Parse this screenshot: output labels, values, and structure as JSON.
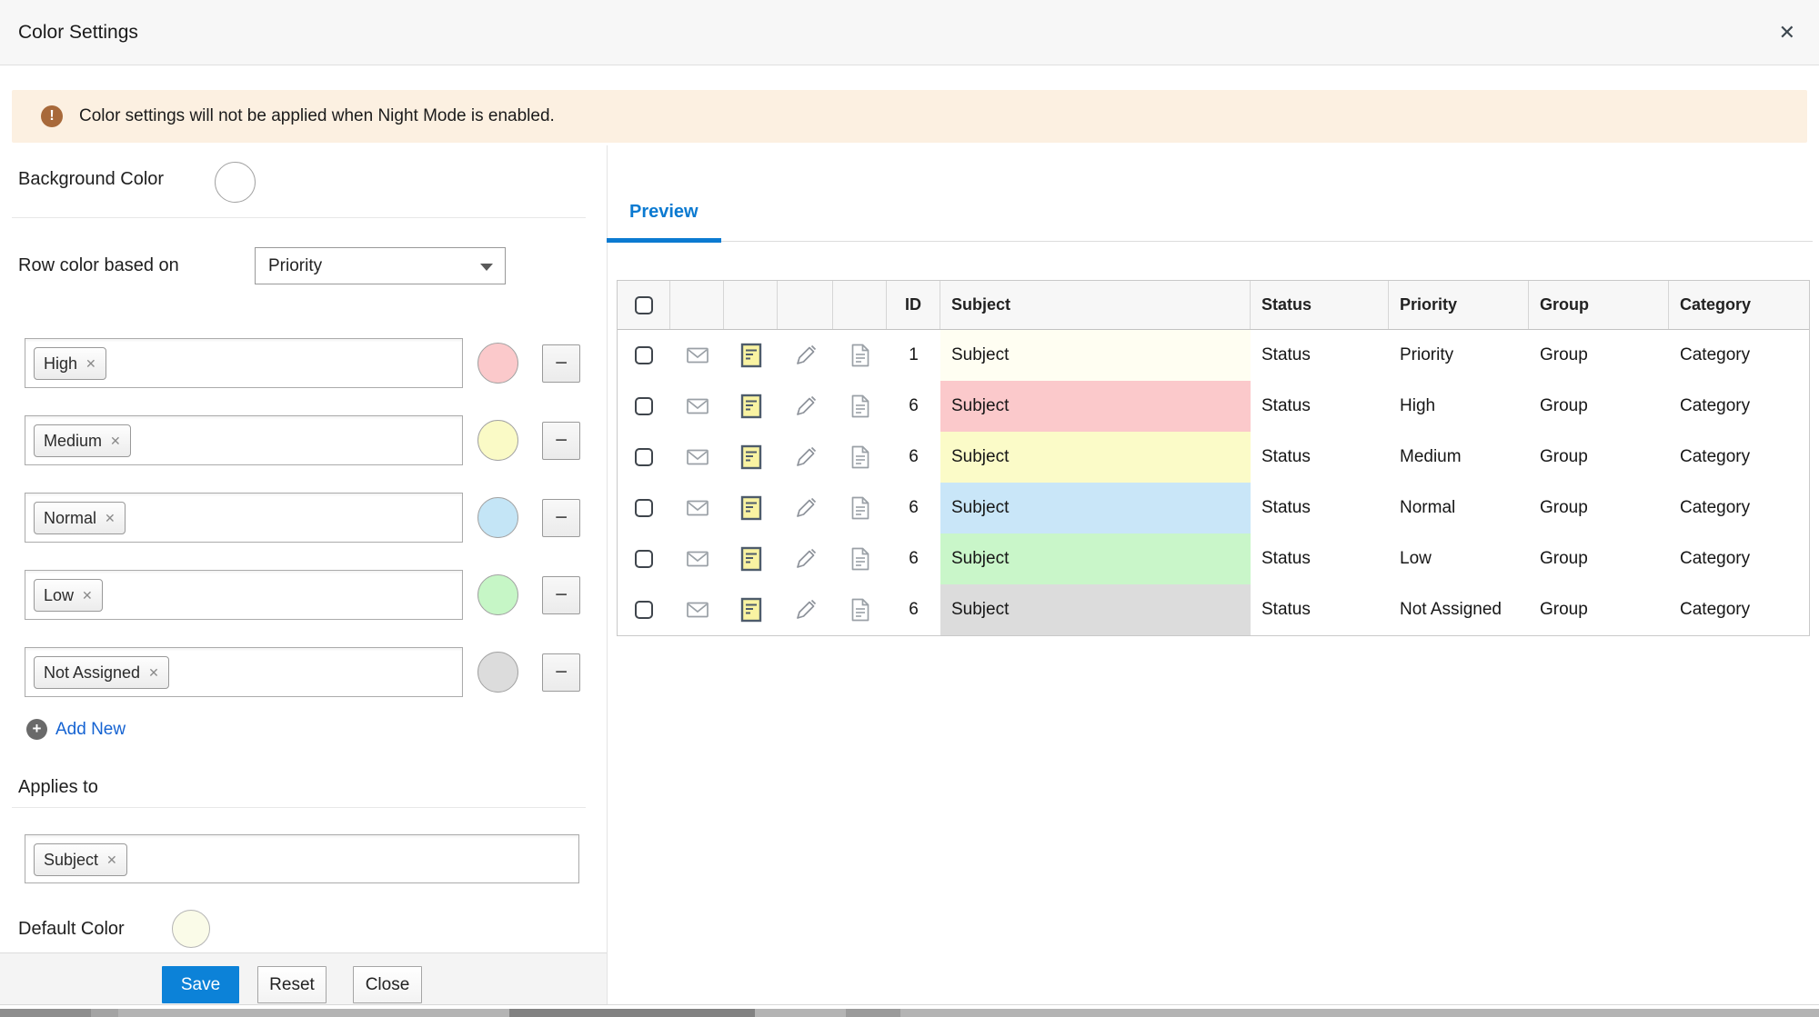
{
  "dialog": {
    "title": "Color Settings"
  },
  "icons": {
    "close": "✕",
    "warning": "!",
    "tag_remove": "✕",
    "minus": "−",
    "plus": "+"
  },
  "colors": {
    "accent_blue": "#0b7ad1",
    "save_button_blue": "#0c82d8",
    "banner_background": "#fcf0e1",
    "warning_icon": "#a8693a"
  },
  "banner": {
    "text": "Color settings will not be applied when Night Mode is enabled."
  },
  "left_panel": {
    "background_color": {
      "label": "Background Color",
      "value": "#ffffff"
    },
    "row_color_based_on": {
      "label": "Row color based on",
      "selected": "Priority"
    },
    "value_rows": [
      {
        "tag": "High",
        "color": "#fbc9cb"
      },
      {
        "tag": "Medium",
        "color": "#fafac6"
      },
      {
        "tag": "Normal",
        "color": "#c4e5f6"
      },
      {
        "tag": "Low",
        "color": "#c6f6c6"
      },
      {
        "tag": "Not Assigned",
        "color": "#dcdcdc"
      }
    ],
    "add_new": {
      "label": "Add New"
    },
    "applies_to": {
      "label": "Applies to",
      "tags": [
        "Subject"
      ]
    },
    "default_color": {
      "label": "Default Color",
      "value": "#fafbe8"
    },
    "footer": {
      "save": "Save",
      "reset": "Reset",
      "close": "Close"
    }
  },
  "preview_panel": {
    "tab_label": "Preview",
    "table": {
      "headers": {
        "id": "ID",
        "subject": "Subject",
        "status": "Status",
        "priority": "Priority",
        "group": "Group",
        "category": "Category"
      },
      "rows": [
        {
          "id": "1",
          "subject": "Subject",
          "subject_color": "#fffef2",
          "status": "Status",
          "priority": "Priority",
          "group": "Group",
          "category": "Category"
        },
        {
          "id": "6",
          "subject": "Subject",
          "subject_color": "#fbc9cb",
          "status": "Status",
          "priority": "High",
          "group": "Group",
          "category": "Category"
        },
        {
          "id": "6",
          "subject": "Subject",
          "subject_color": "#fbfbc8",
          "status": "Status",
          "priority": "Medium",
          "group": "Group",
          "category": "Category"
        },
        {
          "id": "6",
          "subject": "Subject",
          "subject_color": "#c9e6f8",
          "status": "Status",
          "priority": "Normal",
          "group": "Group",
          "category": "Category"
        },
        {
          "id": "6",
          "subject": "Subject",
          "subject_color": "#c9f6c9",
          "status": "Status",
          "priority": "Low",
          "group": "Group",
          "category": "Category"
        },
        {
          "id": "6",
          "subject": "Subject",
          "subject_color": "#dcdcdc",
          "status": "Status",
          "priority": "Not Assigned",
          "group": "Group",
          "category": "Category"
        }
      ]
    }
  }
}
